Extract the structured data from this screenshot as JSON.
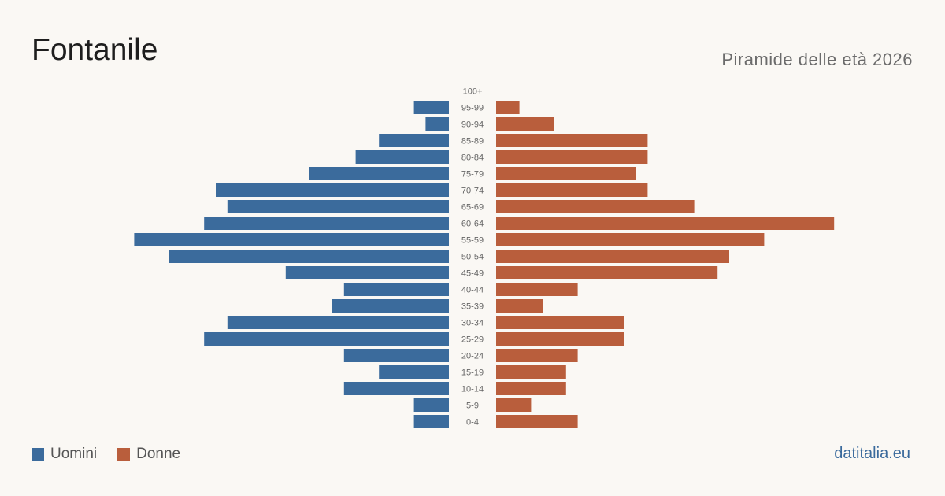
{
  "header": {
    "title": "Fontanile",
    "subtitle": "Piramide delle età 2026"
  },
  "legend": {
    "men_label": "Uomini",
    "women_label": "Donne"
  },
  "brand": "datitalia.eu",
  "colors": {
    "men": "#3b6b9c",
    "women": "#b95e3c",
    "background": "#faf8f4"
  },
  "chart_data": {
    "type": "bar",
    "orientation": "horizontal-pyramid",
    "categories": [
      "100+",
      "95-99",
      "90-94",
      "85-89",
      "80-84",
      "75-79",
      "70-74",
      "65-69",
      "60-64",
      "55-59",
      "50-54",
      "45-49",
      "40-44",
      "35-39",
      "30-34",
      "25-29",
      "20-24",
      "15-19",
      "10-14",
      "5-9",
      "0-4"
    ],
    "series": [
      {
        "name": "Uomini",
        "values": [
          0,
          3,
          2,
          6,
          8,
          12,
          20,
          19,
          21,
          27,
          24,
          14,
          9,
          10,
          19,
          21,
          9,
          6,
          9,
          3,
          3
        ]
      },
      {
        "name": "Donne",
        "values": [
          0,
          2,
          5,
          13,
          13,
          12,
          13,
          17,
          29,
          23,
          20,
          19,
          7,
          4,
          11,
          11,
          7,
          6,
          6,
          3,
          7
        ]
      }
    ]
  }
}
